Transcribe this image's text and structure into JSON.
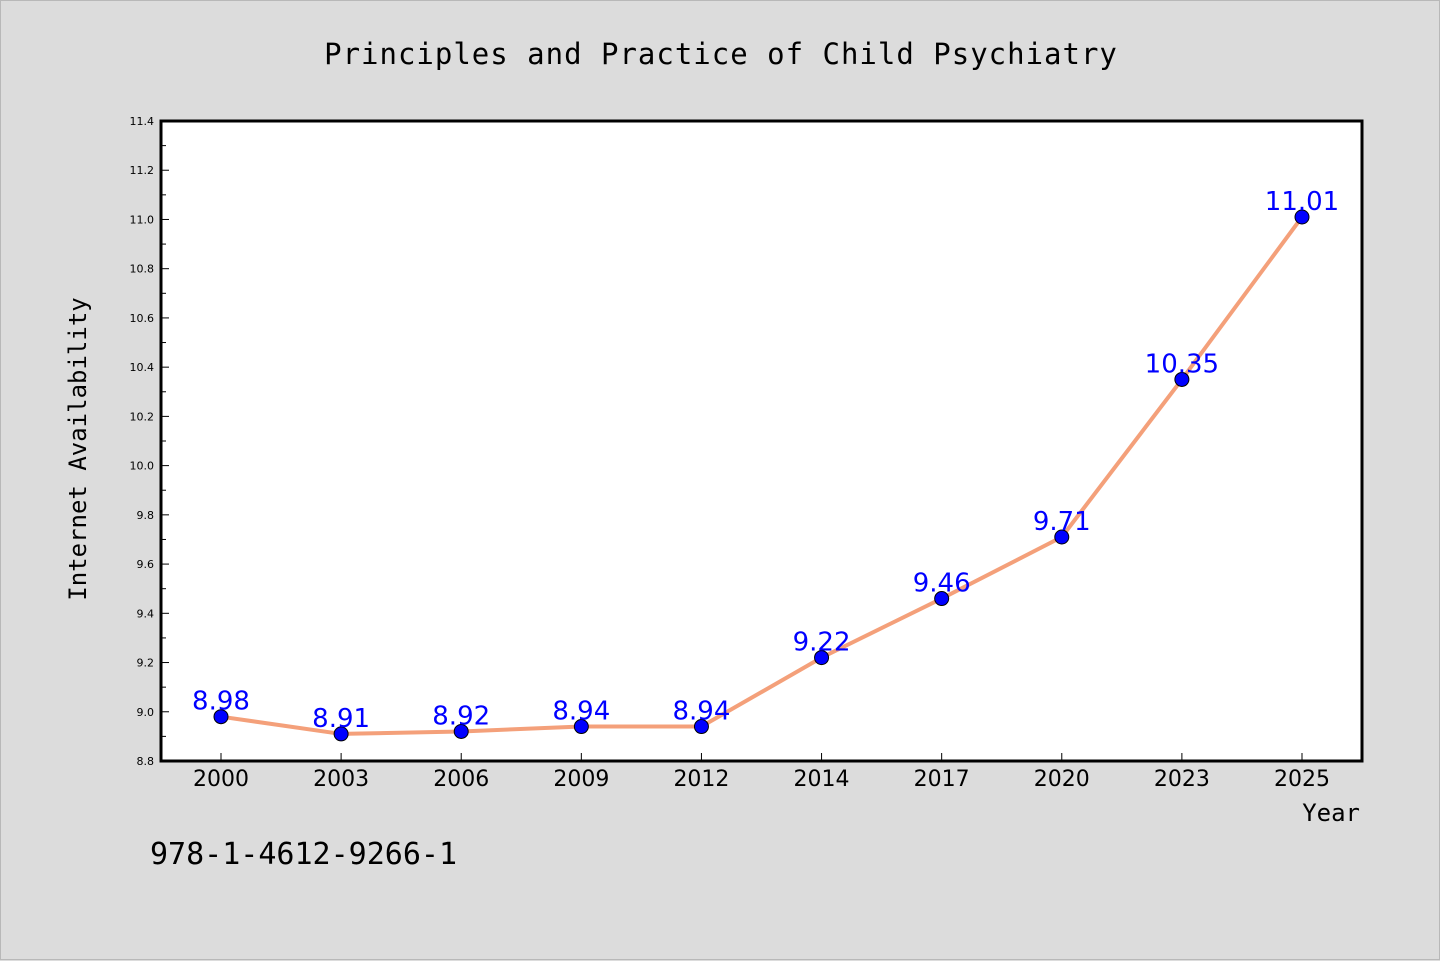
{
  "chart_data": {
    "type": "line",
    "title": "Principles and Practice of Child Psychiatry",
    "xlabel": "Year",
    "ylabel": "Internet Availability",
    "categories": [
      "2000",
      "2003",
      "2006",
      "2009",
      "2012",
      "2014",
      "2017",
      "2020",
      "2023",
      "2025"
    ],
    "series": [
      {
        "values": [
          8.98,
          8.91,
          8.92,
          8.94,
          8.94,
          9.22,
          9.46,
          9.71,
          10.35,
          11.01
        ],
        "labels": [
          "8.98",
          "8.91",
          "8.92",
          "8.94",
          "8.94",
          "9.22",
          "9.46",
          "9.71",
          "10.35",
          "11.01"
        ],
        "line_color": "#f4a07a",
        "marker_color": "#0000ff"
      }
    ],
    "ylim": [
      8.8,
      11.4
    ],
    "yticks": [
      "8.8",
      "9.0",
      "9.2",
      "9.4",
      "9.6",
      "9.8",
      "10.0",
      "10.2",
      "10.4",
      "10.6",
      "10.8",
      "11.0",
      "11.2",
      "11.4"
    ],
    "grid": false,
    "legend": "none"
  },
  "annotation": {
    "isbn": "978-1-4612-9266-1"
  }
}
